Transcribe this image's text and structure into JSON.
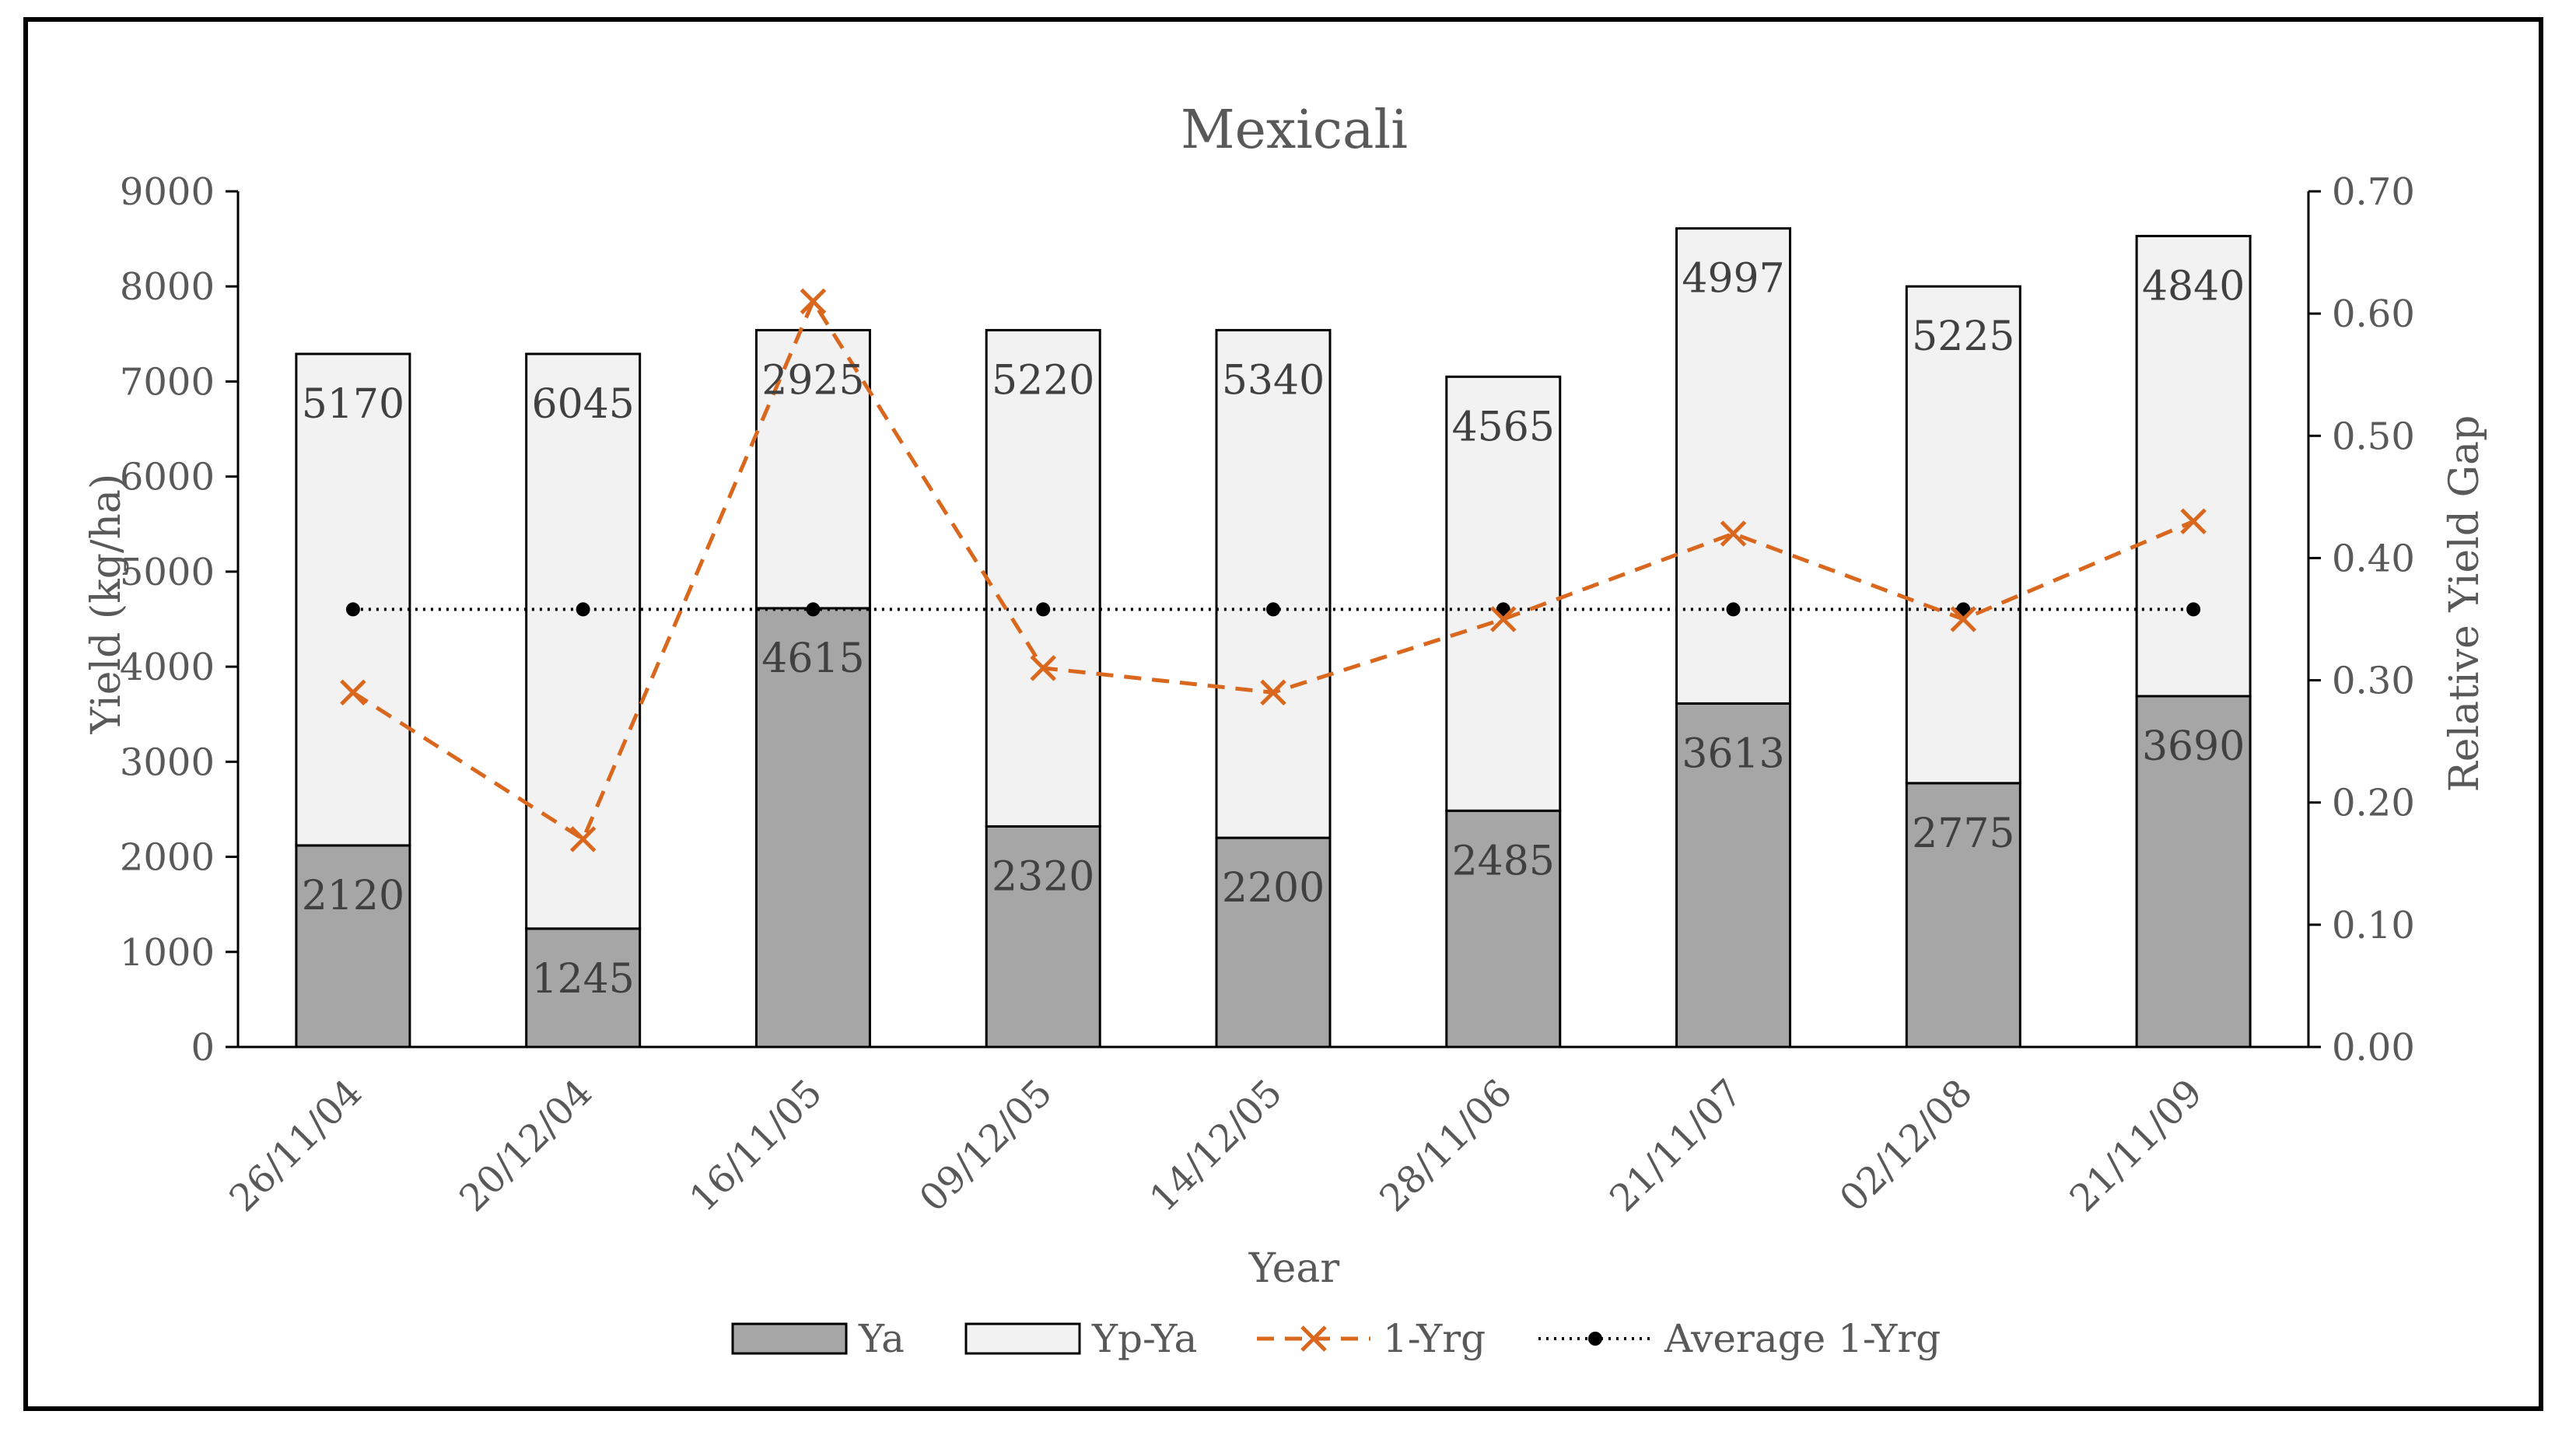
{
  "chart_data": {
    "type": "bar",
    "title": "Mexicali",
    "xlabel": "Year",
    "ylabel": "Yield (kg/ha)",
    "y2label": "Relative Yield Gap",
    "categories": [
      "26/11/04",
      "20/12/04",
      "16/11/05",
      "09/12/05",
      "14/12/05",
      "28/11/06",
      "21/11/07",
      "02/12/08",
      "21/11/09"
    ],
    "ylim": [
      0,
      9000
    ],
    "yticks": [
      "0",
      "1000",
      "2000",
      "3000",
      "4000",
      "5000",
      "6000",
      "7000",
      "8000",
      "9000"
    ],
    "y2lim": [
      0,
      0.7
    ],
    "y2ticks": [
      "0.00",
      "0.10",
      "0.20",
      "0.30",
      "0.40",
      "0.50",
      "0.60",
      "0.70"
    ],
    "stacked": true,
    "grid": false,
    "legend_position": "bottom",
    "series": [
      {
        "name": "Ya",
        "kind": "bar",
        "axis": "left",
        "color": "#a6a6a6",
        "values": [
          2120,
          1245,
          4615,
          2320,
          2200,
          2485,
          3613,
          2775,
          3690
        ],
        "labels": [
          "2120",
          "1245",
          "4615",
          "2320",
          "2200",
          "2485",
          "3613",
          "2775",
          "3690"
        ]
      },
      {
        "name": "Yp-Ya",
        "kind": "bar",
        "axis": "left",
        "color": "#f2f2f2",
        "values": [
          5170,
          6045,
          2925,
          5220,
          5340,
          4565,
          4997,
          5225,
          4840
        ],
        "labels": [
          "5170",
          "6045",
          "2925",
          "5220",
          "5340",
          "4565",
          "4997",
          "5225",
          "4840"
        ]
      },
      {
        "name": "1-Yrg",
        "kind": "line",
        "axis": "right",
        "color": "#d9681e",
        "style": "dashed",
        "marker": "x",
        "values": [
          0.29,
          0.17,
          0.61,
          0.31,
          0.29,
          0.35,
          0.42,
          0.35,
          0.43
        ]
      },
      {
        "name": "Average 1-Yrg",
        "kind": "line",
        "axis": "right",
        "color": "#000000",
        "style": "dotted",
        "marker": "dot",
        "values": [
          0.358,
          0.358,
          0.358,
          0.358,
          0.358,
          0.358,
          0.358,
          0.358,
          0.358
        ]
      }
    ]
  }
}
